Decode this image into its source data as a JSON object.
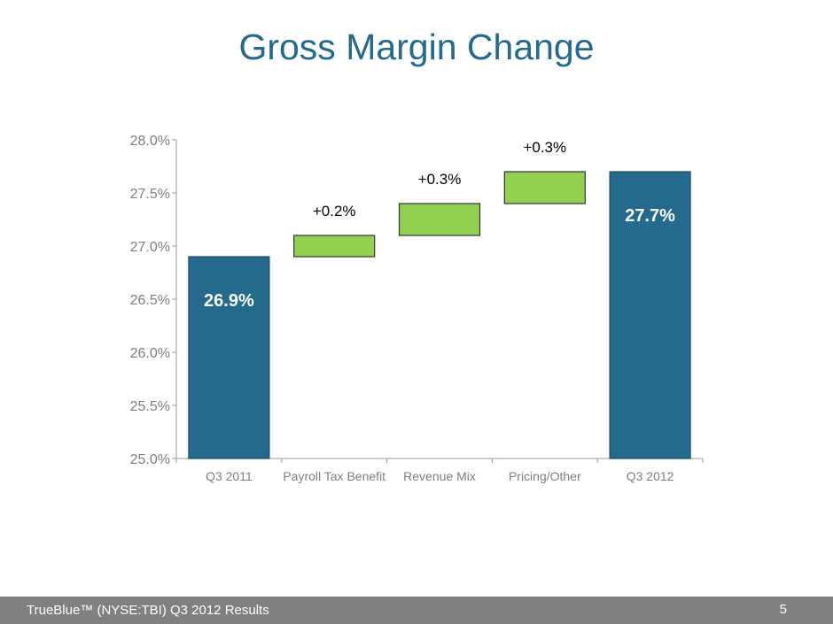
{
  "title": "Gross Margin Change",
  "footer": {
    "text": "TrueBlue™ (NYSE:TBI) Q3 2012 Results",
    "page": "5"
  },
  "colors": {
    "total": "#236a8c",
    "increase": "#92d050",
    "title": "#236a8c",
    "axis_text": "#7f7f7f",
    "footer_bg": "#808080"
  },
  "chart_data": {
    "type": "waterfall",
    "title": "",
    "categories": [
      "Q3 2011",
      "Payroll Tax Benefit",
      "Revenue Mix",
      "Pricing/Other",
      "Q3 2012"
    ],
    "bars": [
      {
        "kind": "total",
        "start": 25.0,
        "end": 26.9,
        "label": "26.9%"
      },
      {
        "kind": "increase",
        "start": 26.9,
        "end": 27.1,
        "label": "+0.2%"
      },
      {
        "kind": "increase",
        "start": 27.1,
        "end": 27.4,
        "label": "+0.3%"
      },
      {
        "kind": "increase",
        "start": 27.4,
        "end": 27.7,
        "label": "+0.3%"
      },
      {
        "kind": "total",
        "start": 25.0,
        "end": 27.7,
        "label": "27.7%"
      }
    ],
    "yticks": [
      "25.0%",
      "25.5%",
      "26.0%",
      "26.5%",
      "27.0%",
      "27.5%",
      "28.0%"
    ],
    "ylim": [
      25.0,
      28.0
    ],
    "grid": false,
    "legend": "none"
  }
}
